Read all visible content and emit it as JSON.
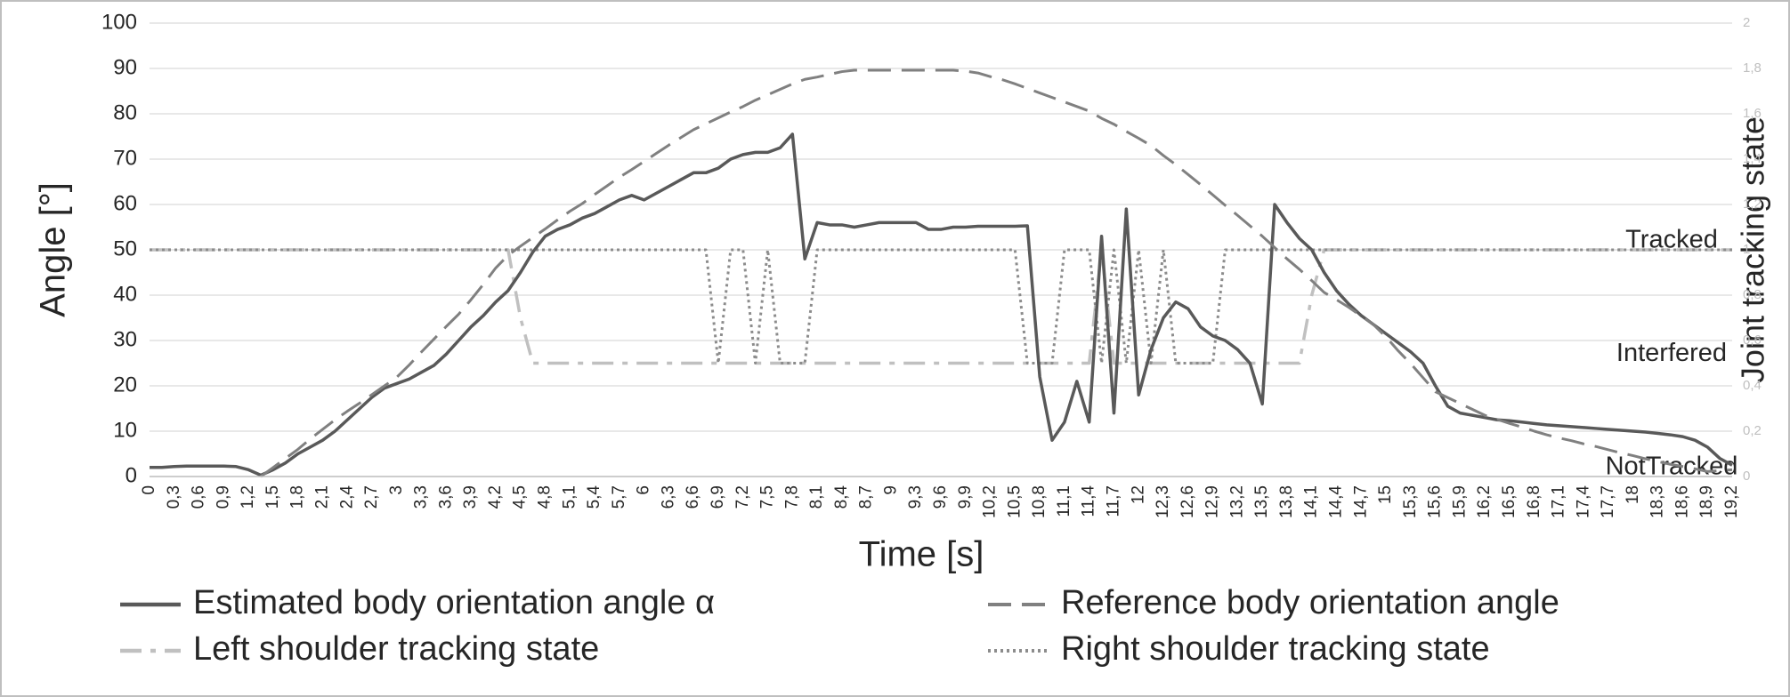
{
  "chart_data": {
    "type": "line",
    "x_label": "Time [s]",
    "y_label": "Angle [°]",
    "y2_label": "Joint tracking state",
    "categories": [
      "0",
      null,
      "0,3",
      null,
      "0,6",
      null,
      "0,9",
      null,
      "1,2",
      null,
      "1,5",
      null,
      "1,8",
      null,
      "2,1",
      null,
      "2,4",
      null,
      "2,7",
      null,
      "3",
      null,
      "3,3",
      null,
      "3,6",
      null,
      "3,9",
      null,
      "4,2",
      null,
      "4,5",
      null,
      "4,8",
      null,
      "5,1",
      null,
      "5,4",
      null,
      "5,7",
      null,
      "6",
      null,
      "6,3",
      null,
      "6,6",
      null,
      "6,9",
      null,
      "7,2",
      null,
      "7,5",
      null,
      "7,8",
      null,
      "8,1",
      null,
      "8,4",
      null,
      "8,7",
      null,
      "9",
      null,
      "9,3",
      null,
      "9,6",
      null,
      "9,9",
      null,
      "10,2",
      null,
      "10,5",
      null,
      "10,8",
      null,
      "11,1",
      null,
      "11,4",
      null,
      "11,7",
      null,
      "12",
      null,
      "12,3",
      null,
      "12,6",
      null,
      "12,9",
      null,
      "13,2",
      null,
      "13,5",
      null,
      "13,8",
      null,
      "14,1",
      null,
      "14,4",
      null,
      "14,7",
      null,
      "15",
      null,
      "15,3",
      null,
      "15,6",
      null,
      "15,9",
      null,
      "16,2",
      null,
      "16,5",
      null,
      "16,8",
      null,
      "17,1",
      null,
      "17,4",
      null,
      "17,7",
      null,
      "18",
      null,
      "18,3",
      null,
      "18,6",
      null,
      "18,9",
      null,
      "19,2"
    ],
    "ylim": [
      0,
      100
    ],
    "yticks": [
      0,
      10,
      20,
      30,
      40,
      50,
      60,
      70,
      80,
      90,
      100
    ],
    "y2lim": [
      0,
      2
    ],
    "y2ticks": [
      0,
      {
        "value": 0.2,
        "label": "0,2"
      },
      {
        "value": 0.4,
        "label": "0,4"
      },
      {
        "value": 0.6,
        "label": "0,6"
      },
      {
        "value": 0.8,
        "label": "0,8"
      },
      1,
      {
        "value": 1.2,
        "label": "1,2"
      },
      {
        "value": 1.4,
        "label": "1,4"
      },
      {
        "value": 1.6,
        "label": "1,6"
      },
      {
        "value": 1.8,
        "label": "1,8"
      },
      2
    ],
    "y2_state_labels": [
      {
        "value": 1,
        "label": "Tracked"
      },
      {
        "value": 0.5,
        "label": "Interfered"
      },
      {
        "value": 0,
        "label": "NotTracked"
      }
    ],
    "grid": true,
    "legend": "bottom",
    "series": [
      {
        "name": "Estimated body orientation angle α",
        "color": "#595959",
        "style": "solid",
        "values": [
          2,
          2,
          2.2,
          2.3,
          2.3,
          2.3,
          2.3,
          2.2,
          1.5,
          0.3,
          1.5,
          3,
          5,
          6.5,
          8,
          10,
          12.5,
          15,
          17.5,
          19.5,
          20.5,
          21.5,
          23,
          24.5,
          27,
          30,
          33,
          35.5,
          38.5,
          41,
          45,
          49.5,
          53,
          54.5,
          55.5,
          57,
          58,
          59.5,
          61,
          62,
          61,
          62.5,
          64,
          65.5,
          67,
          67,
          68,
          70,
          71,
          71.5,
          71.5,
          72.5,
          75.5,
          48,
          56,
          55.5,
          55.5,
          55,
          55.5,
          56,
          56,
          56,
          56,
          54.5,
          54.5,
          55,
          55,
          55.2,
          55.2,
          55.2,
          55.2,
          55.3,
          22,
          8,
          12,
          21,
          12,
          53,
          14,
          59,
          18,
          28,
          35,
          38.5,
          37,
          33,
          31,
          30,
          28,
          25,
          16,
          60,
          56,
          52.5,
          50,
          45,
          41,
          38,
          35.5,
          33.5,
          31.5,
          29.5,
          27.5,
          25,
          20,
          15.5,
          14,
          13.5,
          13,
          12.5,
          12.3,
          12,
          11.7,
          11.4,
          11.2,
          11,
          10.8,
          10.6,
          10.4,
          10.2,
          10,
          9.8,
          9.5,
          9.2,
          8.8,
          8,
          6.5,
          4,
          2.5
        ]
      },
      {
        "name": "Reference body orientation angle",
        "color": "#808080",
        "style": "dashed",
        "values": [
          null,
          null,
          null,
          null,
          null,
          null,
          null,
          null,
          null,
          0,
          2,
          4,
          6,
          8.3,
          10.4,
          12.5,
          14.4,
          16.2,
          18.1,
          20,
          21.9,
          24.6,
          27.5,
          30.3,
          33.1,
          35.8,
          39,
          42.4,
          46,
          48.8,
          50.8,
          52.7,
          54.6,
          56.6,
          58.5,
          60.2,
          62.2,
          64.1,
          66,
          67.7,
          69.5,
          71.3,
          73.1,
          74.8,
          76.5,
          77.8,
          79.1,
          80.4,
          81.6,
          83,
          84.2,
          85.4,
          86.6,
          87.6,
          88.1,
          88.7,
          89.3,
          89.6,
          89.6,
          89.6,
          89.6,
          89.6,
          89.6,
          89.6,
          89.6,
          89.6,
          89.4,
          89,
          88.2,
          87.5,
          86.6,
          85.6,
          84.6,
          83.6,
          82.6,
          81.6,
          80.6,
          79,
          77.7,
          76.1,
          74.6,
          73,
          70.8,
          68.8,
          66.6,
          64.4,
          62.1,
          59.8,
          57.6,
          55.3,
          53,
          50.5,
          48,
          45.7,
          43.2,
          40.6,
          39,
          37.3,
          35.4,
          33.5,
          30.8,
          27.7,
          24.9,
          21.8,
          18.7,
          17.4,
          16.1,
          14.8,
          13.5,
          12.6,
          11.7,
          10.9,
          10,
          9.2,
          8.5,
          7.9,
          7.2,
          6.6,
          5.9,
          5.2,
          4.6,
          3.9,
          3.3,
          2.7,
          2.2,
          1.7,
          1.1,
          1.3,
          1.5
        ]
      },
      {
        "name": "Left shoulder tracking state",
        "color": "#c0c0c0",
        "style": "dashdot",
        "axis": "y2",
        "values": [
          1,
          1,
          1,
          1,
          1,
          1,
          1,
          1,
          1,
          1,
          1,
          1,
          1,
          1,
          1,
          1,
          1,
          1,
          1,
          1,
          1,
          1,
          1,
          1,
          1,
          1,
          1,
          1,
          1,
          1,
          0.7,
          0.5,
          0.5,
          0.5,
          0.5,
          0.5,
          0.5,
          0.5,
          0.5,
          0.5,
          0.5,
          0.5,
          0.5,
          0.5,
          0.5,
          0.5,
          0.5,
          0.5,
          0.5,
          0.5,
          0.5,
          0.5,
          0.5,
          0.5,
          0.5,
          0.5,
          0.5,
          0.5,
          0.5,
          0.5,
          0.5,
          0.5,
          0.5,
          0.5,
          0.5,
          0.5,
          0.5,
          0.5,
          0.5,
          0.5,
          0.5,
          0.5,
          0.5,
          0.5,
          0.5,
          0.5,
          0.5,
          1,
          0.5,
          0.5,
          0.5,
          0.5,
          0.5,
          0.5,
          0.5,
          0.5,
          0.5,
          0.5,
          0.5,
          0.5,
          0.5,
          0.5,
          0.5,
          0.5,
          0.8,
          1,
          1,
          1,
          1,
          1,
          1,
          1,
          1,
          1,
          1,
          1,
          1,
          1,
          1,
          1,
          1,
          1,
          1,
          1,
          1,
          1,
          1,
          1,
          1,
          1,
          1,
          1,
          1,
          1,
          1,
          1,
          1,
          1,
          1
        ]
      },
      {
        "name": "Right shoulder tracking state",
        "color": "#8c8c8c",
        "style": "dotted",
        "axis": "y2",
        "values": [
          1,
          1,
          1,
          1,
          1,
          1,
          1,
          1,
          1,
          1,
          1,
          1,
          1,
          1,
          1,
          1,
          1,
          1,
          1,
          1,
          1,
          1,
          1,
          1,
          1,
          1,
          1,
          1,
          1,
          1,
          1,
          1,
          1,
          1,
          1,
          1,
          1,
          1,
          1,
          1,
          1,
          1,
          1,
          1,
          1,
          1,
          0.5,
          1,
          1,
          0.5,
          1,
          0.5,
          0.5,
          0.5,
          1,
          1,
          1,
          1,
          1,
          1,
          1,
          1,
          1,
          1,
          1,
          1,
          1,
          1,
          1,
          1,
          1,
          0.5,
          0.5,
          0.5,
          1,
          1,
          1,
          0.5,
          1,
          0.5,
          1,
          0.5,
          1,
          0.5,
          0.5,
          0.5,
          0.5,
          1,
          1,
          1,
          1,
          1,
          1,
          1,
          1,
          1,
          1,
          1,
          1,
          1,
          1,
          1,
          1,
          1,
          1,
          1,
          1,
          1,
          1,
          1,
          1,
          1,
          1,
          1,
          1,
          1,
          1,
          1,
          1,
          1,
          1,
          1,
          1,
          1,
          1,
          1,
          1,
          1,
          1
        ]
      }
    ]
  }
}
